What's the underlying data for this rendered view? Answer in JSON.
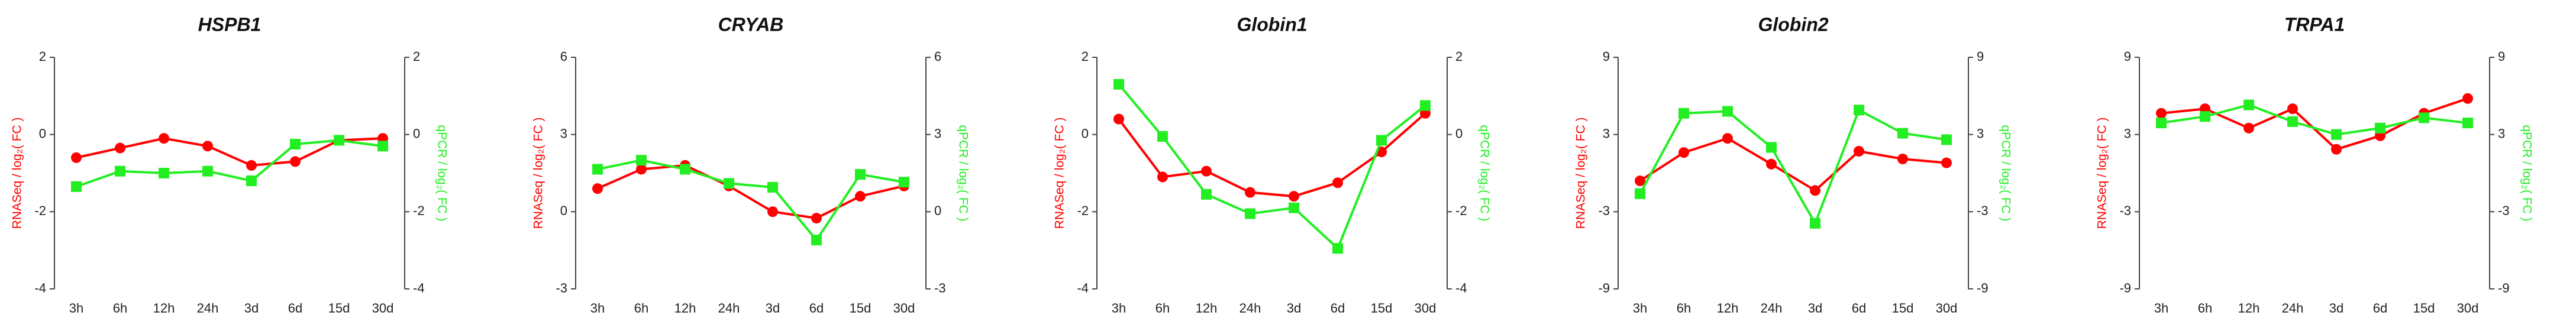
{
  "chart_data": [
    {
      "type": "line",
      "title": "HSPB1",
      "ylabel": "RNASeq / log₂( FC )",
      "y2label": "qPCR / log₂( FC )",
      "categories": [
        "3h",
        "6h",
        "12h",
        "24h",
        "3d",
        "6d",
        "15d",
        "30d"
      ],
      "ylim": [
        -4,
        2
      ],
      "yticks": [
        -4,
        -2,
        0,
        2
      ],
      "y2lim": [
        -4,
        2
      ],
      "y2ticks": [
        -4,
        -2,
        0,
        2
      ],
      "series": [
        {
          "color": "#ff0000",
          "marker": "circle",
          "values": [
            -0.6,
            -0.35,
            -0.1,
            -0.3,
            -0.8,
            -0.7,
            -0.15,
            -0.1
          ]
        },
        {
          "color": "#22ee22",
          "marker": "square",
          "axis": "y2",
          "values": [
            -1.35,
            -0.95,
            -1.0,
            -0.95,
            -1.2,
            -0.25,
            -0.15,
            -0.3
          ]
        }
      ]
    },
    {
      "type": "line",
      "title": "CRYAB",
      "ylabel": "RNASeq / log₂( FC )",
      "y2label": "qPCR / log₂( FC )",
      "categories": [
        "3h",
        "6h",
        "12h",
        "24h",
        "3d",
        "6d",
        "15d",
        "30d"
      ],
      "ylim": [
        -3,
        6
      ],
      "yticks": [
        -3,
        0,
        3,
        6
      ],
      "y2lim": [
        -3,
        6
      ],
      "y2ticks": [
        -3,
        0,
        3,
        6
      ],
      "series": [
        {
          "color": "#ff0000",
          "marker": "circle",
          "values": [
            0.9,
            1.65,
            1.8,
            1.0,
            0.0,
            -0.25,
            0.6,
            1.0
          ]
        },
        {
          "color": "#22ee22",
          "marker": "square",
          "axis": "y2",
          "values": [
            1.65,
            2.0,
            1.65,
            1.1,
            0.95,
            -1.1,
            1.45,
            1.15
          ]
        }
      ]
    },
    {
      "type": "line",
      "title": "Globin1",
      "ylabel": "RNASeq / log₂( FC )",
      "y2label": "qPCR / log₂( FC )",
      "categories": [
        "3h",
        "6h",
        "12h",
        "24h",
        "3d",
        "6d",
        "15d",
        "30d"
      ],
      "ylim": [
        -4,
        2
      ],
      "yticks": [
        -4,
        -2,
        0,
        2
      ],
      "y2lim": [
        -4,
        2
      ],
      "y2ticks": [
        -4,
        -2,
        0,
        2
      ],
      "series": [
        {
          "color": "#ff0000",
          "marker": "circle",
          "values": [
            0.4,
            -1.1,
            -0.95,
            -1.5,
            -1.6,
            -1.25,
            -0.45,
            0.55
          ]
        },
        {
          "color": "#22ee22",
          "marker": "square",
          "axis": "y2",
          "values": [
            1.3,
            -0.05,
            -1.55,
            -2.05,
            -1.9,
            -2.95,
            -0.15,
            0.75
          ]
        }
      ]
    },
    {
      "type": "line",
      "title": "Globin2",
      "ylabel": "RNASeq / log₂( FC )",
      "y2label": "qPCR / log₂( FC )",
      "categories": [
        "3h",
        "6h",
        "12h",
        "24h",
        "3d",
        "6d",
        "15d",
        "30d"
      ],
      "ylim": [
        -9,
        9
      ],
      "yticks": [
        -9,
        -3,
        3,
        9
      ],
      "y2lim": [
        -9,
        9
      ],
      "y2ticks": [
        -9,
        -3,
        3,
        9
      ],
      "series": [
        {
          "color": "#ff0000",
          "marker": "circle",
          "values": [
            -0.6,
            1.6,
            2.7,
            0.7,
            -1.35,
            1.7,
            1.1,
            0.8
          ]
        },
        {
          "color": "#22ee22",
          "marker": "square",
          "axis": "y2",
          "values": [
            -1.6,
            4.65,
            4.8,
            2.0,
            -3.9,
            4.9,
            3.1,
            2.6
          ]
        }
      ]
    },
    {
      "type": "line",
      "title": "TRPA1",
      "ylabel": "RNASeq / log₂( FC )",
      "y2label": "qPCR / log₂( FC )",
      "categories": [
        "3h",
        "6h",
        "12h",
        "24h",
        "3d",
        "6d",
        "15d",
        "30d"
      ],
      "ylim": [
        -9,
        9
      ],
      "yticks": [
        -9,
        -3,
        3,
        9
      ],
      "y2lim": [
        -9,
        9
      ],
      "y2ticks": [
        -9,
        -3,
        3,
        9
      ],
      "series": [
        {
          "color": "#ff0000",
          "marker": "circle",
          "values": [
            4.65,
            5.0,
            3.5,
            5.0,
            1.85,
            2.9,
            4.65,
            5.8
          ]
        },
        {
          "color": "#22ee22",
          "marker": "square",
          "axis": "y2",
          "values": [
            3.9,
            4.4,
            5.3,
            4.0,
            3.0,
            3.5,
            4.3,
            3.9
          ]
        }
      ]
    }
  ]
}
